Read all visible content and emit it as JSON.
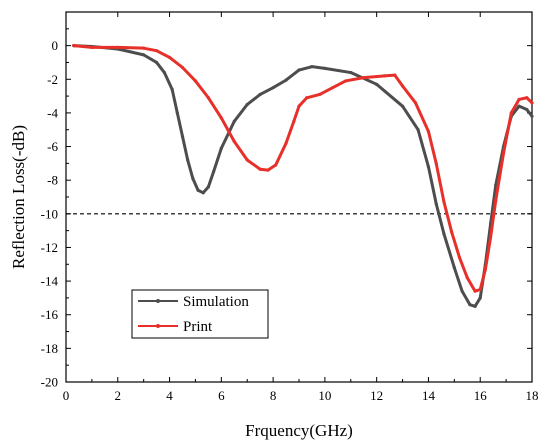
{
  "chart_data": {
    "type": "line",
    "title": "",
    "xlabel": "Frquency(GHz)",
    "ylabel": "Reflection Loss(-dB)",
    "xlim": [
      0,
      18
    ],
    "ylim": [
      -20,
      2
    ],
    "xticks": [
      0,
      2,
      4,
      6,
      8,
      10,
      12,
      14,
      16,
      18
    ],
    "yticks": [
      0,
      -2,
      -4,
      -6,
      -8,
      -10,
      -12,
      -14,
      -16,
      -18,
      -20
    ],
    "grid": false,
    "legend_position": "bottom-left",
    "reference_line": {
      "y": -10,
      "style": "dashed"
    },
    "series": [
      {
        "name": "Simulation",
        "color": "#4d4d4d",
        "points": [
          [
            0.3,
            0.0
          ],
          [
            1.0,
            -0.05
          ],
          [
            2.0,
            -0.2
          ],
          [
            3.0,
            -0.55
          ],
          [
            3.5,
            -1.0
          ],
          [
            3.8,
            -1.6
          ],
          [
            4.1,
            -2.6
          ],
          [
            4.3,
            -4.0
          ],
          [
            4.5,
            -5.4
          ],
          [
            4.7,
            -6.8
          ],
          [
            4.9,
            -7.9
          ],
          [
            5.1,
            -8.6
          ],
          [
            5.3,
            -8.75
          ],
          [
            5.5,
            -8.4
          ],
          [
            5.7,
            -7.5
          ],
          [
            6.0,
            -6.1
          ],
          [
            6.5,
            -4.5
          ],
          [
            7.0,
            -3.5
          ],
          [
            7.5,
            -2.9
          ],
          [
            8.0,
            -2.5
          ],
          [
            8.5,
            -2.05
          ],
          [
            9.0,
            -1.45
          ],
          [
            9.5,
            -1.25
          ],
          [
            10.0,
            -1.35
          ],
          [
            11.0,
            -1.6
          ],
          [
            12.0,
            -2.3
          ],
          [
            13.0,
            -3.6
          ],
          [
            13.6,
            -5.0
          ],
          [
            14.0,
            -7.2
          ],
          [
            14.3,
            -9.4
          ],
          [
            14.6,
            -11.2
          ],
          [
            15.0,
            -13.2
          ],
          [
            15.3,
            -14.6
          ],
          [
            15.6,
            -15.4
          ],
          [
            15.8,
            -15.5
          ],
          [
            16.0,
            -15.0
          ],
          [
            16.2,
            -13.0
          ],
          [
            16.4,
            -10.6
          ],
          [
            16.6,
            -8.3
          ],
          [
            16.9,
            -6.0
          ],
          [
            17.2,
            -4.2
          ],
          [
            17.5,
            -3.6
          ],
          [
            17.8,
            -3.8
          ],
          [
            18.0,
            -4.2
          ]
        ]
      },
      {
        "name": "Print",
        "color": "#e8302a",
        "points": [
          [
            0.3,
            0.0
          ],
          [
            1.0,
            -0.1
          ],
          [
            2.0,
            -0.1
          ],
          [
            3.0,
            -0.15
          ],
          [
            3.5,
            -0.3
          ],
          [
            4.0,
            -0.7
          ],
          [
            4.5,
            -1.3
          ],
          [
            5.0,
            -2.1
          ],
          [
            5.5,
            -3.1
          ],
          [
            6.0,
            -4.3
          ],
          [
            6.5,
            -5.7
          ],
          [
            7.0,
            -6.8
          ],
          [
            7.5,
            -7.35
          ],
          [
            7.8,
            -7.4
          ],
          [
            8.1,
            -7.1
          ],
          [
            8.5,
            -5.8
          ],
          [
            8.8,
            -4.5
          ],
          [
            9.0,
            -3.6
          ],
          [
            9.3,
            -3.1
          ],
          [
            9.8,
            -2.9
          ],
          [
            10.3,
            -2.5
          ],
          [
            10.8,
            -2.1
          ],
          [
            11.5,
            -1.9
          ],
          [
            12.3,
            -1.8
          ],
          [
            12.7,
            -1.75
          ],
          [
            13.0,
            -2.4
          ],
          [
            13.5,
            -3.4
          ],
          [
            14.0,
            -5.1
          ],
          [
            14.3,
            -7.0
          ],
          [
            14.6,
            -9.3
          ],
          [
            14.9,
            -11.1
          ],
          [
            15.2,
            -12.6
          ],
          [
            15.5,
            -13.8
          ],
          [
            15.8,
            -14.6
          ],
          [
            16.0,
            -14.5
          ],
          [
            16.2,
            -13.3
          ],
          [
            16.4,
            -11.4
          ],
          [
            16.6,
            -9.2
          ],
          [
            16.9,
            -6.4
          ],
          [
            17.2,
            -4.0
          ],
          [
            17.5,
            -3.2
          ],
          [
            17.8,
            -3.1
          ],
          [
            18.0,
            -3.4
          ]
        ]
      }
    ]
  }
}
